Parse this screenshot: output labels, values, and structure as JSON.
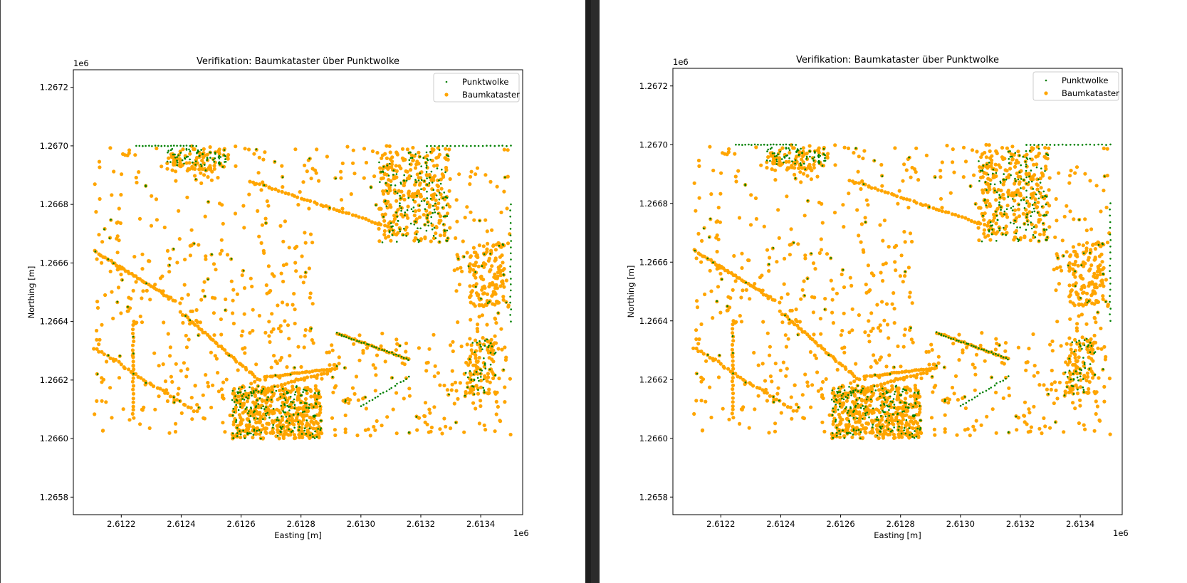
{
  "chart_data": [
    {
      "type": "scatter",
      "title": "Verifikation: Baumkataster über Punktwolke",
      "xlabel": "Easting [m]",
      "ylabel": "Northing [m]",
      "x_offset_label": "1e6",
      "y_offset_label": "1e6",
      "xlim": [
        2.61204,
        2.61354
      ],
      "ylim": [
        1.26574,
        1.26726
      ],
      "x_ticks": [
        "2.6122",
        "2.6124",
        "2.6126",
        "2.6128",
        "2.6130",
        "2.6132",
        "2.6134"
      ],
      "y_ticks": [
        "1.2658",
        "1.2660",
        "1.2662",
        "1.2664",
        "1.2666",
        "1.2668",
        "1.2670",
        "1.2672"
      ],
      "legend_position": "top-right",
      "grid": false,
      "series": [
        {
          "name": "Punktwolke",
          "color": "#008000",
          "marker": "small-point"
        },
        {
          "name": "Baumkataster",
          "color": "#FFA500",
          "marker": "circle"
        }
      ]
    },
    {
      "type": "scatter",
      "title": "Verifikation: Baumkataster über Punktwolke",
      "xlabel": "Easting [m]",
      "ylabel": "Northing [m]",
      "x_offset_label": "1e6",
      "y_offset_label": "1e6",
      "xlim": [
        2.61204,
        2.61354
      ],
      "ylim": [
        1.26574,
        1.26726
      ],
      "x_ticks": [
        "2.6122",
        "2.6124",
        "2.6126",
        "2.6128",
        "2.6130",
        "2.6132",
        "2.6134"
      ],
      "y_ticks": [
        "1.2658",
        "1.2660",
        "1.2662",
        "1.2664",
        "1.2666",
        "1.2668",
        "1.2670",
        "1.2672"
      ],
      "legend_position": "top-right",
      "grid": false,
      "series": [
        {
          "name": "Punktwolke",
          "color": "#008000",
          "marker": "small-point"
        },
        {
          "name": "Baumkataster",
          "color": "#FFA500",
          "marker": "circle"
        }
      ]
    }
  ]
}
